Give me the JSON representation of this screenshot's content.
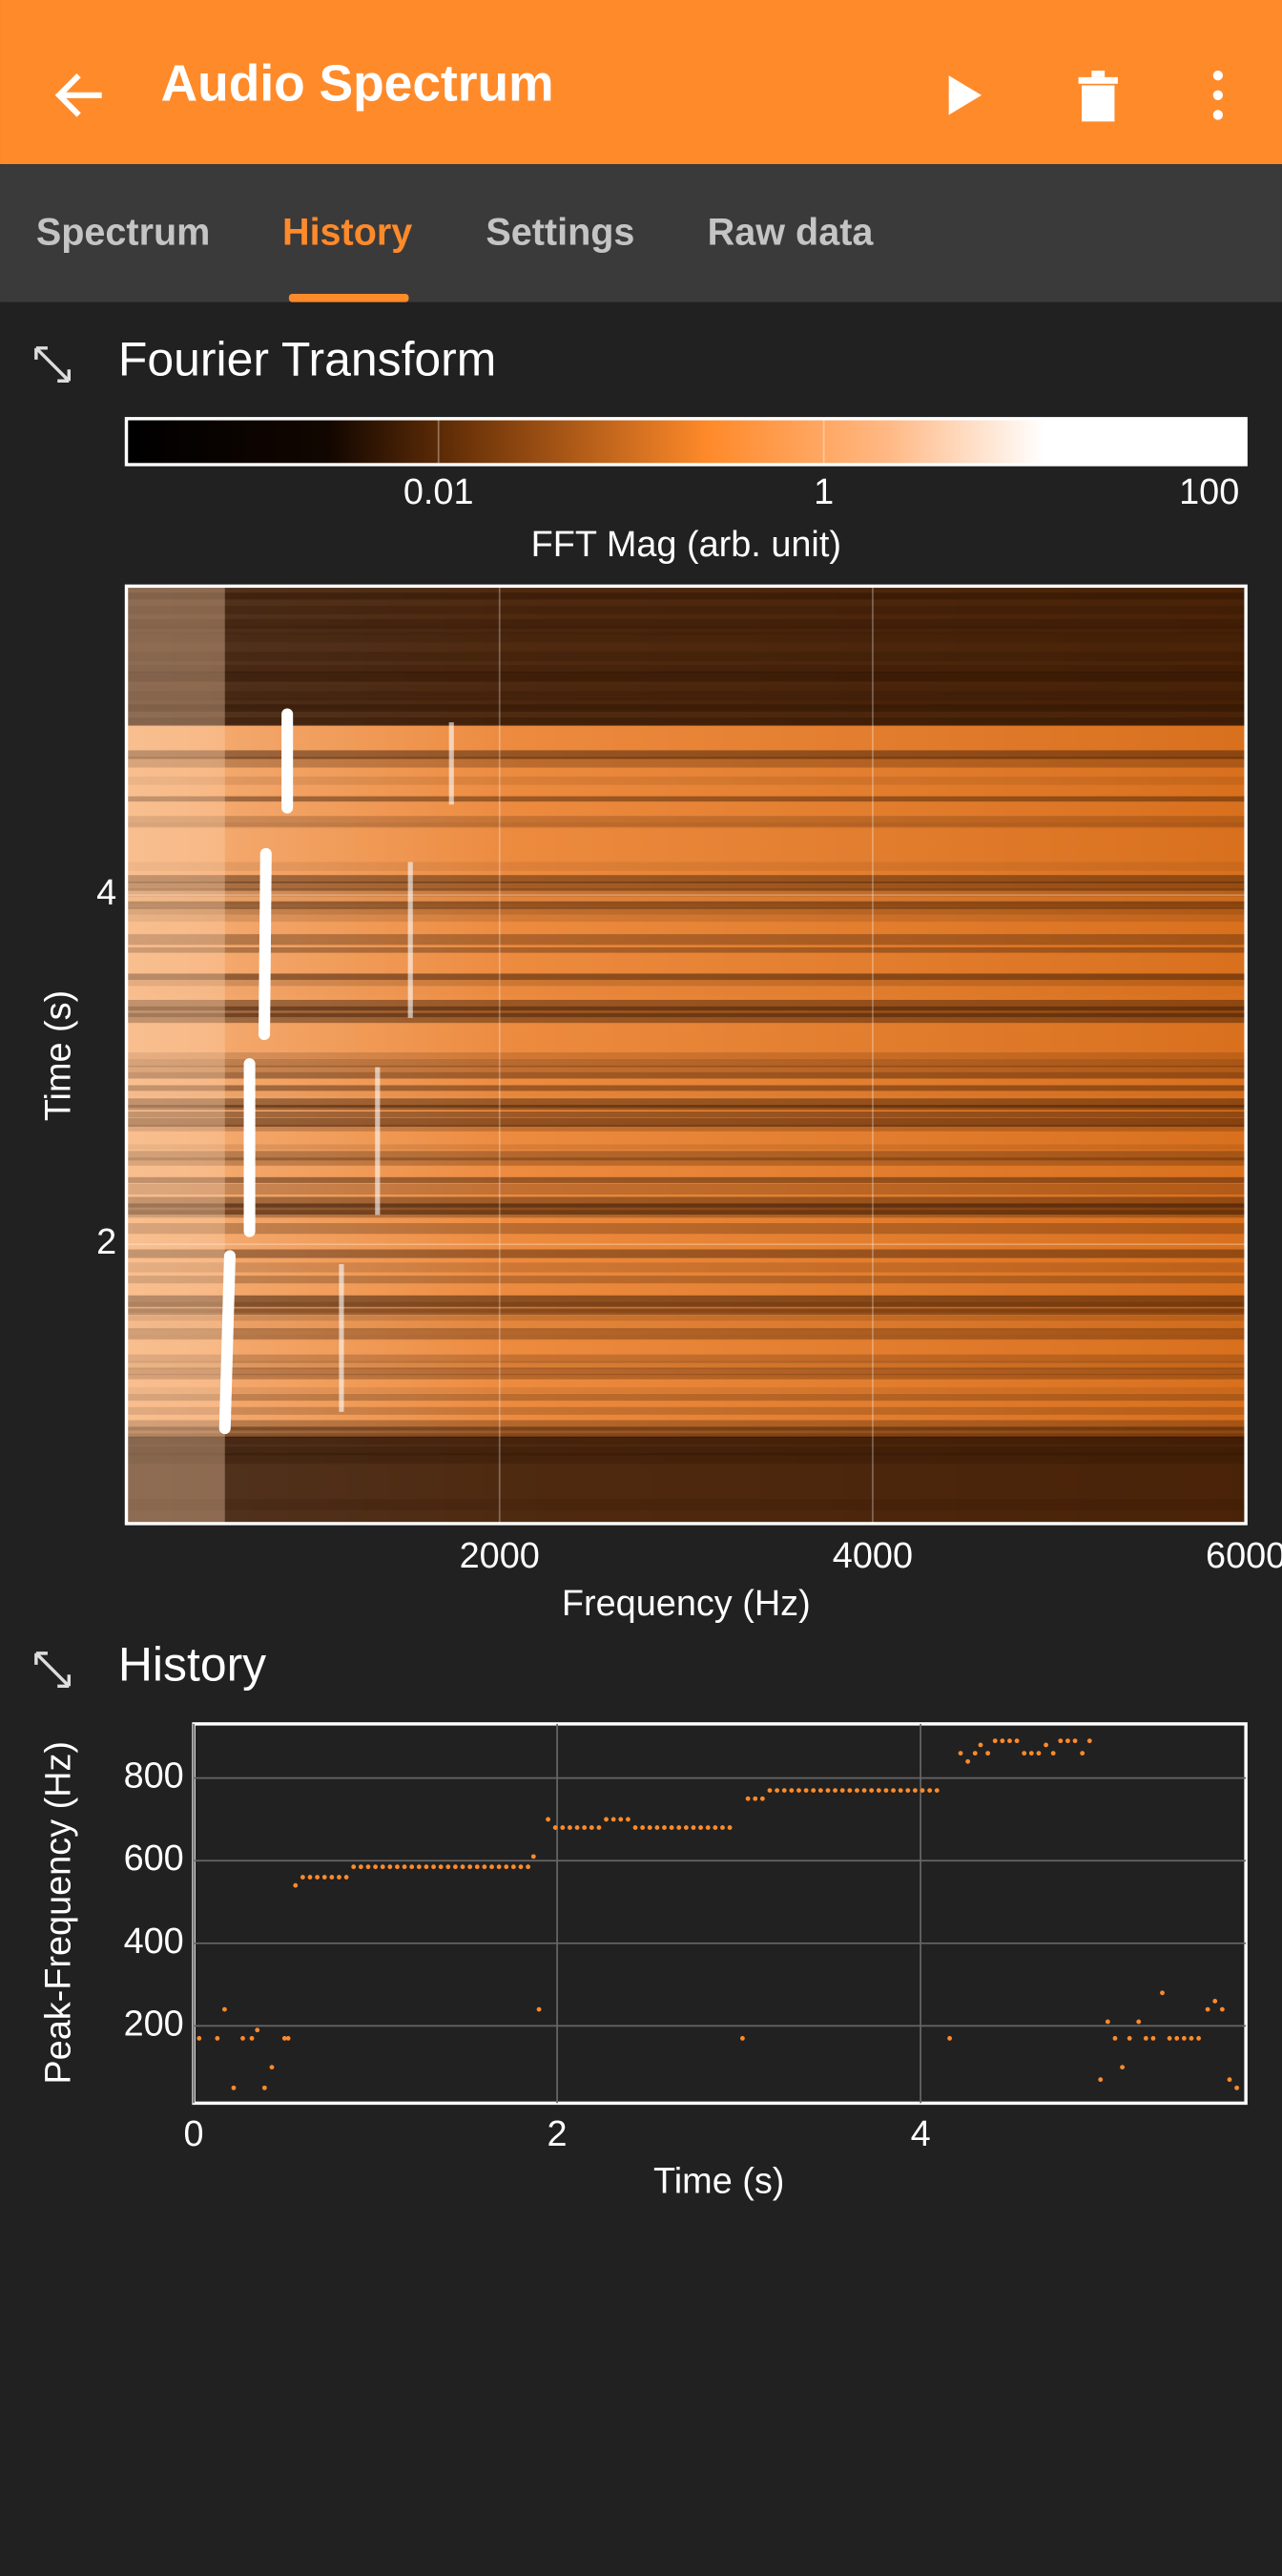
{
  "app_bar": {
    "title": "Audio Spectrum"
  },
  "tabs": [
    "Spectrum",
    "History",
    "Settings",
    "Raw data"
  ],
  "chart_data": [
    {
      "type": "heatmap",
      "title": "Fourier Transform",
      "colorbar": {
        "label": "FFT Mag (arb. unit)",
        "lim": [
          0.00024,
          155
        ],
        "ticks": [
          0.01,
          1,
          100
        ],
        "log": true
      },
      "xlabel": "Frequency (Hz)",
      "xlim": [
        0,
        6000
      ],
      "xticks": [
        2000,
        4000,
        6000
      ],
      "ylabel": "Time (s)",
      "ylim": [
        0.4,
        5.77
      ],
      "yticks": [
        2,
        4
      ],
      "grid": true
    },
    {
      "type": "scatter",
      "title": "History",
      "xlabel": "Time (s)",
      "ylabel": "Peak-Frequency (Hz)",
      "xlim": [
        0,
        5.79
      ],
      "xticks": [
        0,
        2,
        4
      ],
      "ylim": [
        13,
        931
      ],
      "yticks": [
        200,
        400,
        600,
        800
      ],
      "grid": true,
      "color": "#ff8a2a",
      "x": [
        0.03,
        0.13,
        0.17,
        0.22,
        0.27,
        0.32,
        0.35,
        0.39,
        0.43,
        0.5,
        0.52,
        0.56,
        0.6,
        0.64,
        0.68,
        0.72,
        0.76,
        0.8,
        0.84,
        0.88,
        0.92,
        0.96,
        1.0,
        1.04,
        1.08,
        1.12,
        1.16,
        1.2,
        1.24,
        1.28,
        1.32,
        1.36,
        1.4,
        1.44,
        1.48,
        1.52,
        1.56,
        1.6,
        1.64,
        1.68,
        1.72,
        1.76,
        1.8,
        1.84,
        1.87,
        1.9,
        1.95,
        1.99,
        2.03,
        2.07,
        2.11,
        2.15,
        2.19,
        2.23,
        2.27,
        2.31,
        2.35,
        2.39,
        2.43,
        2.47,
        2.51,
        2.55,
        2.59,
        2.63,
        2.67,
        2.71,
        2.75,
        2.79,
        2.83,
        2.87,
        2.91,
        2.95,
        3.02,
        3.05,
        3.09,
        3.13,
        3.17,
        3.21,
        3.25,
        3.29,
        3.33,
        3.37,
        3.41,
        3.45,
        3.49,
        3.53,
        3.57,
        3.61,
        3.65,
        3.69,
        3.73,
        3.77,
        3.81,
        3.85,
        3.89,
        3.93,
        3.97,
        4.01,
        4.05,
        4.09,
        4.16,
        4.22,
        4.26,
        4.3,
        4.33,
        4.37,
        4.41,
        4.45,
        4.49,
        4.53,
        4.57,
        4.61,
        4.65,
        4.69,
        4.73,
        4.77,
        4.81,
        4.85,
        4.89,
        4.93,
        4.99,
        5.03,
        5.07,
        5.11,
        5.15,
        5.2,
        5.24,
        5.28,
        5.33,
        5.37,
        5.41,
        5.45,
        5.49,
        5.53,
        5.58,
        5.62,
        5.66,
        5.7,
        5.74
      ],
      "values": [
        170,
        170,
        240,
        50,
        170,
        170,
        190,
        50,
        100,
        170,
        170,
        540,
        560,
        560,
        560,
        560,
        560,
        560,
        560,
        585,
        585,
        585,
        585,
        585,
        585,
        585,
        585,
        585,
        585,
        585,
        585,
        585,
        585,
        585,
        585,
        585,
        585,
        585,
        585,
        585,
        585,
        585,
        585,
        585,
        610,
        240,
        700,
        680,
        680,
        680,
        680,
        680,
        680,
        680,
        700,
        700,
        700,
        700,
        680,
        680,
        680,
        680,
        680,
        680,
        680,
        680,
        680,
        680,
        680,
        680,
        680,
        680,
        170,
        750,
        750,
        750,
        770,
        770,
        770,
        770,
        770,
        770,
        770,
        770,
        770,
        770,
        770,
        770,
        770,
        770,
        770,
        770,
        770,
        770,
        770,
        770,
        770,
        770,
        770,
        770,
        170,
        860,
        840,
        860,
        880,
        860,
        890,
        890,
        890,
        890,
        860,
        860,
        860,
        880,
        860,
        890,
        890,
        890,
        860,
        890,
        70,
        210,
        170,
        100,
        170,
        210,
        170,
        170,
        280,
        170,
        170,
        170,
        170,
        170,
        240,
        260,
        240,
        70,
        50
      ]
    }
  ]
}
